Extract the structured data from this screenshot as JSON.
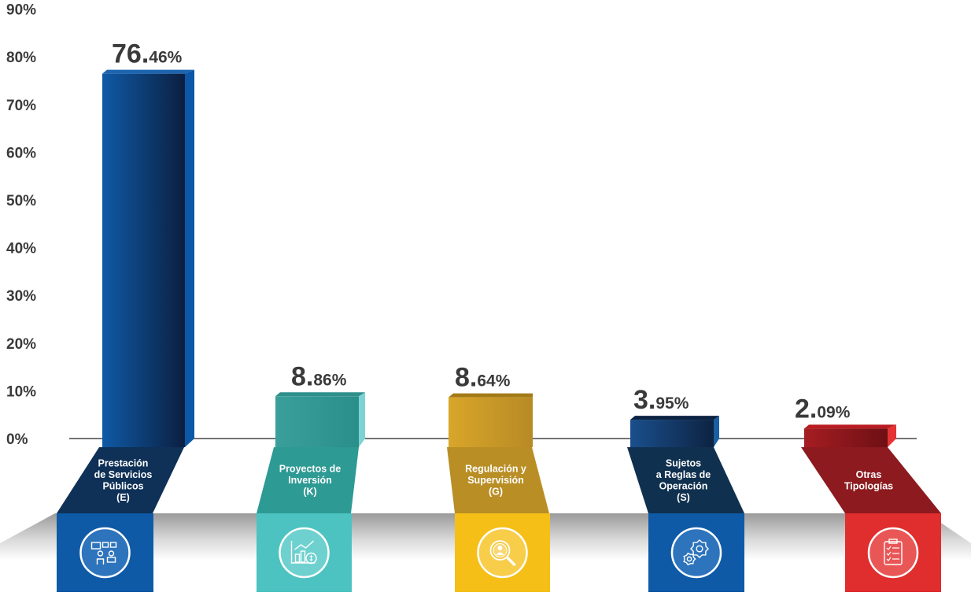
{
  "chart_data": {
    "type": "bar",
    "categories": [
      "Prestación de Servicios Públicos (E)",
      "Proyectos de Inversión (K)",
      "Regulación y Supervisión (G)",
      "Sujetos a Reglas de Operación (S)",
      "Otras Tipologías"
    ],
    "category_label_lines": [
      [
        "Prestación",
        "de Servicios",
        "Públicos",
        "(E)"
      ],
      [
        "Proyectos de",
        "Inversión",
        "(K)"
      ],
      [
        "Regulación y",
        "Supervisión",
        "(G)"
      ],
      [
        "Sujetos",
        "a Reglas de",
        "Operación",
        "(S)"
      ],
      [
        "Otras",
        "Tipologías"
      ]
    ],
    "values": [
      76.46,
      8.86,
      8.64,
      3.95,
      2.09
    ],
    "value_labels": [
      {
        "main": "76.",
        "small": "46%"
      },
      {
        "main": "8.",
        "small": "86%"
      },
      {
        "main": "8.",
        "small": "64%"
      },
      {
        "main": "3.",
        "small": "95%"
      },
      {
        "main": "2.",
        "small": "09%"
      }
    ],
    "yticks": [
      "0%",
      "10%",
      "20%",
      "30%",
      "40%",
      "50%",
      "60%",
      "70%",
      "80%",
      "90%"
    ],
    "ylim": [
      0,
      90
    ],
    "icons": [
      "people-service-icon",
      "investment-chart-icon",
      "magnifier-person-icon",
      "gears-icon",
      "checklist-icon"
    ],
    "colors": [
      {
        "bar_light": "#0f5aa6",
        "bar_dark": "#0b1f40",
        "side": "#0d57a8",
        "top": "#1c64b0",
        "ribbon": "#0f3057",
        "panel": "#0f5aa6",
        "circle": "#2e74bd"
      },
      {
        "bar_light": "#3a9f9a",
        "bar_dark": "#2a8e8a",
        "side": "#7dd3d3",
        "top": "#2f8f8b",
        "ribbon": "#2e9a94",
        "panel": "#4cc3c1",
        "circle": "#6fd1cf"
      },
      {
        "bar_light": "#d9a62a",
        "bar_dark": "#b78a25",
        "side": "#c89a22",
        "top": "#a47a18",
        "ribbon": "#b98e25",
        "panel": "#f5bf17",
        "circle": "#f7cd4a"
      },
      {
        "bar_light": "#1a4f8c",
        "bar_dark": "#0d2342",
        "side": "#1a5fa3",
        "top": "#0d2342",
        "ribbon": "#10304f",
        "panel": "#0f5aa6",
        "circle": "#2e74bd"
      },
      {
        "bar_light": "#a51d22",
        "bar_dark": "#6e1014",
        "side": "#e53232",
        "top": "#b81c22",
        "ribbon": "#8c1a1e",
        "panel": "#e02d2d",
        "circle": "#e95656"
      }
    ]
  }
}
